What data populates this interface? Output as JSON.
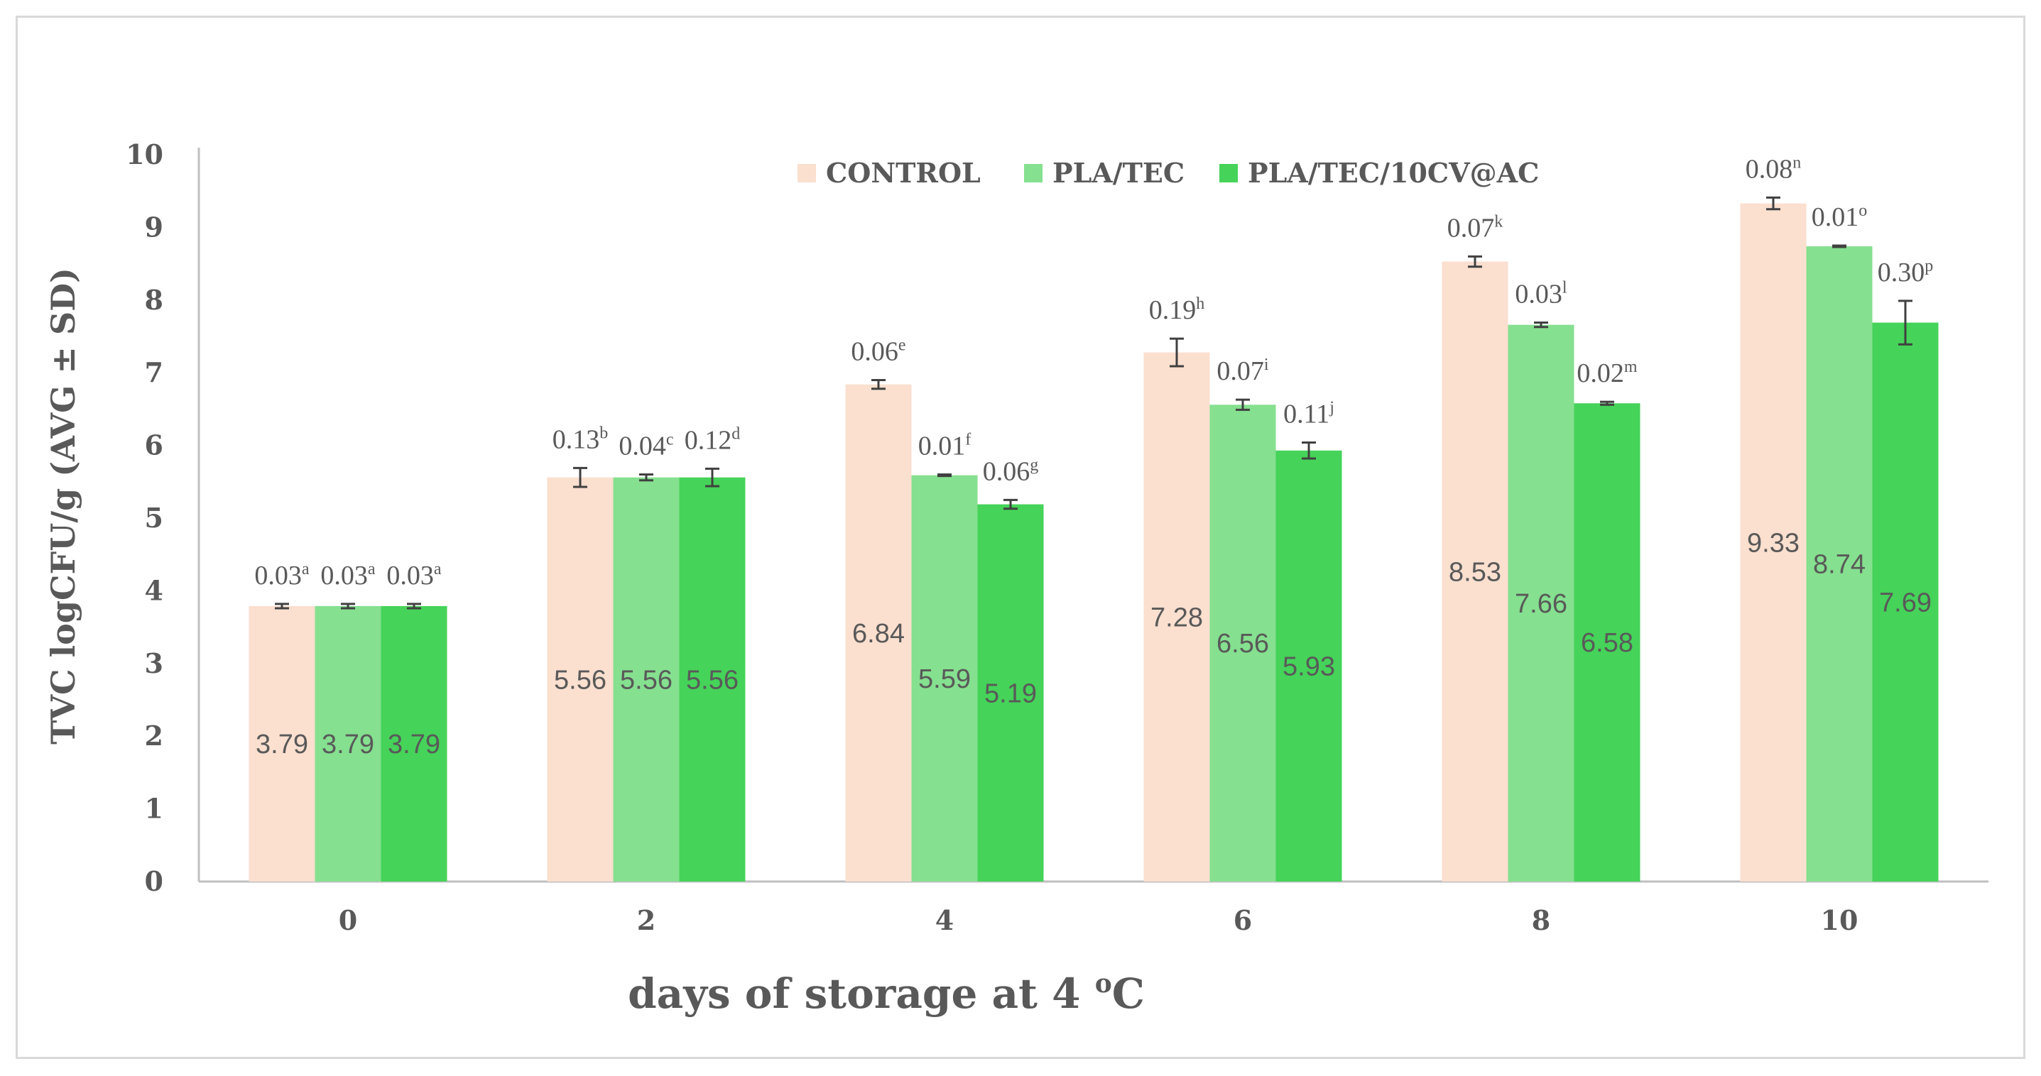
{
  "chart_data": {
    "type": "bar",
    "xlabel": "days of storage at 4",
    "xlabel_sup": "o",
    "xlabel_tail": "C",
    "ylabel": "TVC  logCFU/g (AVG ± SD)",
    "ylim": [
      0,
      10
    ],
    "yticks": [
      "0",
      "1",
      "2",
      "3",
      "4",
      "5",
      "6",
      "7",
      "8",
      "9",
      "10"
    ],
    "grid": false,
    "legend_position": "top-center",
    "categories": [
      "0",
      "2",
      "4",
      "6",
      "8",
      "10"
    ],
    "series": [
      {
        "name": "CONTROL",
        "color": "#fbdfcf",
        "values": [
          3.79,
          5.56,
          6.84,
          7.28,
          8.53,
          9.33
        ],
        "value_labels": [
          "3.79",
          "5.56",
          "6.84",
          "7.28",
          "8.53",
          "9.33"
        ],
        "sd": [
          0.03,
          0.13,
          0.06,
          0.19,
          0.07,
          0.08
        ],
        "sd_labels": [
          "0.03",
          "0.13",
          "0.06",
          "0.19",
          "0.07",
          "0.08"
        ],
        "letters": [
          "a",
          "b",
          "e",
          "h",
          "k",
          "n"
        ]
      },
      {
        "name": "PLA/TEC",
        "color": "#85e08f",
        "values": [
          3.79,
          5.56,
          5.59,
          6.56,
          7.66,
          8.74
        ],
        "value_labels": [
          "3.79",
          "5.56",
          "5.59",
          "6.56",
          "7.66",
          "8.74"
        ],
        "sd": [
          0.03,
          0.04,
          0.01,
          0.07,
          0.03,
          0.01
        ],
        "sd_labels": [
          "0.03",
          "0.04",
          "0.01",
          "0.07",
          "0.03",
          "0.01"
        ],
        "letters": [
          "a",
          "c",
          "f",
          "i",
          "l",
          "o"
        ]
      },
      {
        "name": "PLA/TEC/10CV@AC",
        "color": "#45d359",
        "values": [
          3.79,
          5.56,
          5.19,
          5.93,
          6.58,
          7.69
        ],
        "value_labels": [
          "3.79",
          "5.56",
          "5.19",
          "5.93",
          "6.58",
          "7.69"
        ],
        "sd": [
          0.03,
          0.12,
          0.06,
          0.11,
          0.02,
          0.3
        ],
        "sd_labels": [
          "0.03",
          "0.12",
          "0.06",
          "0.11",
          "0.02",
          "0.30"
        ],
        "letters": [
          "a",
          "d",
          "g",
          "j",
          "m",
          "p"
        ]
      }
    ]
  }
}
